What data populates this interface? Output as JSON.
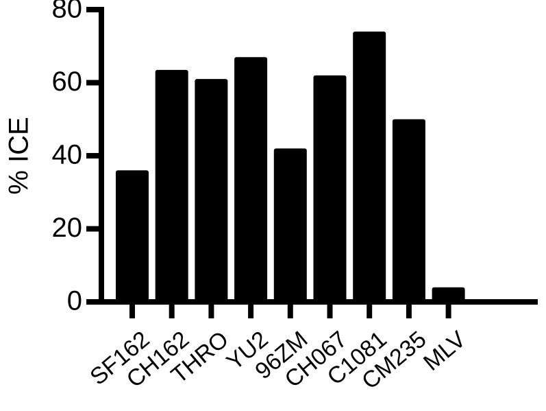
{
  "chart_data": {
    "type": "bar",
    "y_label": "% ICE",
    "categories": [
      "SF162",
      "CH162",
      "THRO",
      "YU2",
      "96ZM",
      "CH067",
      "C1081",
      "CM235",
      "MLV"
    ],
    "values": [
      36,
      63.5,
      61,
      67,
      42,
      62,
      74,
      50,
      4
    ],
    "color": "#000000",
    "ylim": [
      0,
      80
    ],
    "yticks": [
      0,
      20,
      40,
      60,
      80
    ]
  }
}
